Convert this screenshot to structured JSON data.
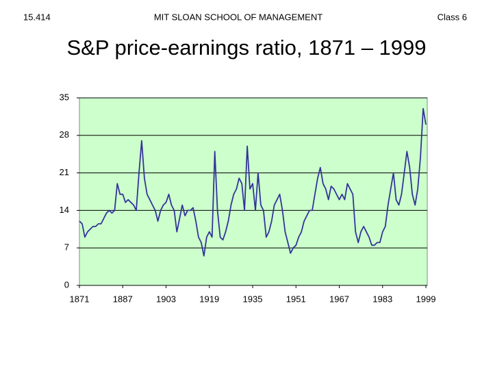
{
  "header": {
    "left": "15.414",
    "center": "MIT SLOAN SCHOOL OF MANAGEMENT",
    "right": "Class 6"
  },
  "chart_data": {
    "type": "line",
    "title": "S&P price-earnings ratio, 1871 – 1999",
    "color": "#333399",
    "background": "#ccffcc",
    "grid": true,
    "x": [
      1871,
      1872,
      1873,
      1874,
      1875,
      1876,
      1877,
      1878,
      1879,
      1880,
      1881,
      1882,
      1883,
      1884,
      1885,
      1886,
      1887,
      1888,
      1889,
      1890,
      1891,
      1892,
      1893,
      1894,
      1895,
      1896,
      1897,
      1898,
      1899,
      1900,
      1901,
      1902,
      1903,
      1904,
      1905,
      1906,
      1907,
      1908,
      1909,
      1910,
      1911,
      1912,
      1913,
      1914,
      1915,
      1916,
      1917,
      1918,
      1919,
      1920,
      1921,
      1922,
      1923,
      1924,
      1925,
      1926,
      1927,
      1928,
      1929,
      1930,
      1931,
      1932,
      1933,
      1934,
      1935,
      1936,
      1937,
      1938,
      1939,
      1940,
      1941,
      1942,
      1943,
      1944,
      1945,
      1946,
      1947,
      1948,
      1949,
      1950,
      1951,
      1952,
      1953,
      1954,
      1955,
      1956,
      1957,
      1958,
      1959,
      1960,
      1961,
      1962,
      1963,
      1964,
      1965,
      1966,
      1967,
      1968,
      1969,
      1970,
      1971,
      1972,
      1973,
      1974,
      1975,
      1976,
      1977,
      1978,
      1979,
      1980,
      1981,
      1982,
      1983,
      1984,
      1985,
      1986,
      1987,
      1988,
      1989,
      1990,
      1991,
      1992,
      1993,
      1994,
      1995,
      1996,
      1997,
      1998,
      1999
    ],
    "values": [
      12,
      11.5,
      9,
      10,
      10.5,
      11,
      11,
      11.5,
      11.5,
      12.5,
      13.5,
      14,
      13.5,
      14,
      19,
      17,
      17,
      15.5,
      16,
      15.5,
      15,
      14,
      21,
      27,
      20,
      17,
      16,
      15,
      14,
      12,
      14,
      15,
      15.5,
      17,
      15,
      14,
      10,
      12.5,
      15,
      13,
      14,
      14,
      14.5,
      12,
      9,
      8,
      5.5,
      9,
      10,
      9,
      25,
      14,
      9,
      8.5,
      10,
      12,
      15,
      17,
      18,
      20,
      19,
      14,
      26,
      18,
      19,
      14,
      21,
      15,
      14,
      9,
      10,
      12,
      15,
      16,
      17,
      14,
      10,
      8,
      6,
      7,
      7.5,
      9,
      10,
      12,
      13,
      14,
      14,
      17,
      20,
      22,
      19,
      18,
      16,
      18.5,
      18,
      17,
      16,
      17,
      16,
      19,
      18,
      17,
      10,
      8,
      10,
      11,
      10,
      9,
      7.5,
      7.5,
      8,
      8,
      10,
      11,
      15,
      18,
      21,
      16,
      15,
      17,
      21,
      25,
      22,
      17,
      15,
      18,
      24,
      33,
      30
    ],
    "xlim": [
      1871,
      1999
    ],
    "xticks": [
      1871,
      1887,
      1903,
      1919,
      1935,
      1951,
      1967,
      1983,
      1999
    ],
    "ylim": [
      0,
      35
    ],
    "yticks": [
      0,
      7,
      14,
      21,
      28,
      35
    ]
  }
}
